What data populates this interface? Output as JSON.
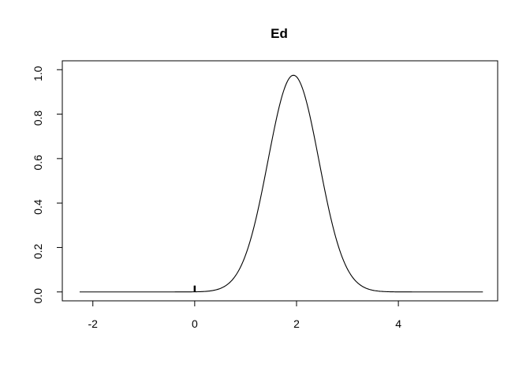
{
  "chart_data": {
    "type": "line",
    "title": "Ed",
    "xlabel": "",
    "ylabel": "",
    "xlim": [
      -2.6,
      5.95
    ],
    "ylim": [
      -0.04,
      1.04
    ],
    "x_ticks": [
      -2,
      0,
      2,
      4
    ],
    "x_tick_labels": [
      "-2",
      "0",
      "2",
      "4"
    ],
    "y_ticks": [
      0.0,
      0.2,
      0.4,
      0.6,
      0.8,
      1.0
    ],
    "y_tick_labels": [
      "0.0",
      "0.2",
      "0.4",
      "0.6",
      "0.8",
      "1.0"
    ],
    "grid": false,
    "legend": "none",
    "series": [
      {
        "curve": "gaussian-density",
        "x_range": [
          -2.26,
          5.66
        ],
        "peak_x": 1.94,
        "peak_y": 0.975,
        "sd": 0.5
      }
    ],
    "rug": [
      -0.01,
      0.0,
      0.01
    ]
  }
}
